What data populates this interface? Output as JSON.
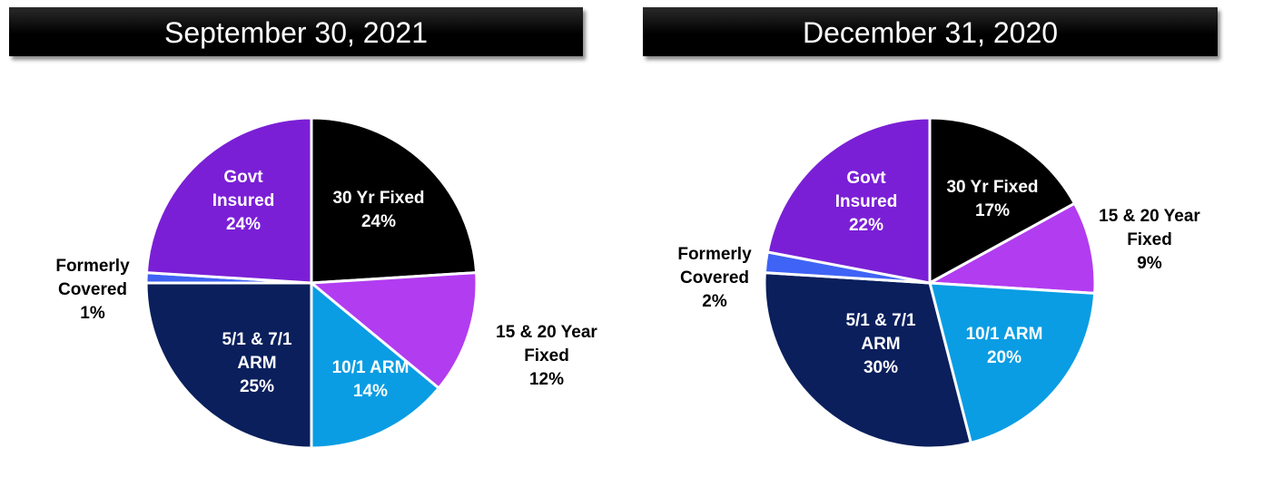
{
  "chart_data": [
    {
      "type": "pie",
      "title": "September 30, 2021",
      "slices": [
        {
          "name": "30 Yr Fixed",
          "value": 24,
          "label": "24%",
          "color": "#000000"
        },
        {
          "name": "15 & 20 Year Fixed",
          "value": 12,
          "label": "12%",
          "color": "#b23cf0"
        },
        {
          "name": "10/1 ARM",
          "value": 14,
          "label": "14%",
          "color": "#0a9de3"
        },
        {
          "name": "5/1 & 7/1 ARM",
          "value": 25,
          "label": "25%",
          "color": "#0a1f5c"
        },
        {
          "name": "Formerly Covered",
          "value": 1,
          "label": "1%",
          "color": "#3f63f5"
        },
        {
          "name": "Govt Insured",
          "value": 24,
          "label": "24%",
          "color": "#7a1fd6"
        }
      ]
    },
    {
      "type": "pie",
      "title": "December 31, 2020",
      "slices": [
        {
          "name": "30 Yr Fixed",
          "value": 17,
          "label": "17%",
          "color": "#000000"
        },
        {
          "name": "15 & 20 Year Fixed",
          "value": 9,
          "label": "9%",
          "color": "#b23cf0"
        },
        {
          "name": "10/1 ARM",
          "value": 20,
          "label": "20%",
          "color": "#0a9de3"
        },
        {
          "name": "5/1 & 7/1 ARM",
          "value": 30,
          "label": "30%",
          "color": "#0a1f5c"
        },
        {
          "name": "Formerly Covered",
          "value": 2,
          "label": "2%",
          "color": "#3f63f5"
        },
        {
          "name": "Govt Insured",
          "value": 22,
          "label": "22%",
          "color": "#7a1fd6"
        }
      ]
    }
  ],
  "labels": {
    "left": {
      "thirty": [
        "30 Yr Fixed",
        "24%"
      ],
      "fifteen": [
        "15 & 20 Year",
        "Fixed",
        "12%"
      ],
      "ten": [
        "10/1 ARM",
        "14%"
      ],
      "five": [
        "5/1 & 7/1",
        "ARM",
        "25%"
      ],
      "formerly": [
        "Formerly",
        "Covered",
        "1%"
      ],
      "govt": [
        "Govt",
        "Insured",
        "24%"
      ]
    },
    "right": {
      "thirty": [
        "30 Yr Fixed",
        "17%"
      ],
      "fifteen": [
        "15 & 20 Year",
        "Fixed",
        "9%"
      ],
      "ten": [
        "10/1 ARM",
        "20%"
      ],
      "five": [
        "5/1 & 7/1",
        "ARM",
        "30%"
      ],
      "formerly": [
        "Formerly",
        "Covered",
        "2%"
      ],
      "govt": [
        "Govt",
        "Insured",
        "22%"
      ]
    }
  }
}
